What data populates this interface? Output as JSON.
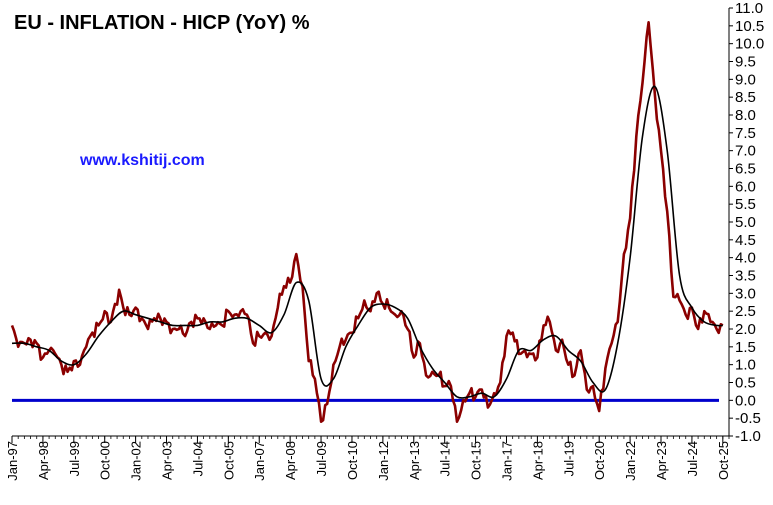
{
  "chart_data": {
    "type": "line",
    "title": "EU - INFLATION - HICP (YoY) %",
    "watermark": "www.kshitij.com",
    "xlabel": "",
    "ylabel": "",
    "ylim": [
      -1.0,
      11.0
    ],
    "y_ticks": [
      "11.0",
      "10.5",
      "10.0",
      "9.5",
      "9.0",
      "8.5",
      "8.0",
      "7.5",
      "7.0",
      "6.5",
      "6.0",
      "5.5",
      "5.0",
      "4.5",
      "4.0",
      "3.5",
      "3.0",
      "2.5",
      "2.0",
      "1.5",
      "1.0",
      "0.5",
      "0.0",
      "-0.5",
      "-1.0"
    ],
    "x_ticks": [
      "Jan-97",
      "Apr-98",
      "Jul-99",
      "Oct-00",
      "Jan-02",
      "Apr-03",
      "Jul-04",
      "Oct-05",
      "Jan-07",
      "Apr-08",
      "Jul-09",
      "Oct-10",
      "Jan-12",
      "Apr-13",
      "Jul-14",
      "Oct-15",
      "Jan-17",
      "Apr-18",
      "Jul-19",
      "Oct-20",
      "Jan-22",
      "Apr-23",
      "Jul-24",
      "Oct-25"
    ],
    "grid": false,
    "y_axis_side": "right",
    "colors": {
      "hicp": "#8b0000",
      "smoothed": "#000000",
      "zero_line": "#0000cc"
    },
    "series": [
      {
        "name": "",
        "style": "dark red",
        "points": [
          [
            "1997-01",
            2.1
          ],
          [
            "1997-04",
            1.5
          ],
          [
            "1997-07",
            1.6
          ],
          [
            "1997-10",
            1.7
          ],
          [
            "1998-01",
            1.6
          ],
          [
            "1998-04",
            1.2
          ],
          [
            "1998-07",
            1.4
          ],
          [
            "1998-10",
            1.3
          ],
          [
            "1999-01",
            1.0
          ],
          [
            "1999-04",
            0.8
          ],
          [
            "1999-07",
            1.1
          ],
          [
            "1999-10",
            1.0
          ],
          [
            "2000-01",
            1.5
          ],
          [
            "2000-04",
            1.9
          ],
          [
            "2000-07",
            2.1
          ],
          [
            "2000-10",
            2.5
          ],
          [
            "2001-01",
            2.2
          ],
          [
            "2001-05",
            3.1
          ],
          [
            "2001-07",
            2.6
          ],
          [
            "2001-10",
            2.4
          ],
          [
            "2002-01",
            2.6
          ],
          [
            "2002-04",
            2.3
          ],
          [
            "2002-07",
            2.0
          ],
          [
            "2002-10",
            2.3
          ],
          [
            "2003-01",
            2.3
          ],
          [
            "2003-04",
            2.2
          ],
          [
            "2003-07",
            2.0
          ],
          [
            "2003-10",
            2.0
          ],
          [
            "2004-01",
            1.8
          ],
          [
            "2004-04",
            2.2
          ],
          [
            "2004-07",
            2.3
          ],
          [
            "2004-10",
            2.3
          ],
          [
            "2005-01",
            2.0
          ],
          [
            "2005-04",
            2.1
          ],
          [
            "2005-07",
            2.1
          ],
          [
            "2005-10",
            2.5
          ],
          [
            "2006-01",
            2.4
          ],
          [
            "2006-04",
            2.5
          ],
          [
            "2006-07",
            2.4
          ],
          [
            "2006-10",
            1.6
          ],
          [
            "2007-01",
            1.8
          ],
          [
            "2007-04",
            1.9
          ],
          [
            "2007-07",
            1.8
          ],
          [
            "2007-10",
            2.6
          ],
          [
            "2008-01",
            3.2
          ],
          [
            "2008-04",
            3.3
          ],
          [
            "2008-07",
            4.1
          ],
          [
            "2008-10",
            3.2
          ],
          [
            "2009-01",
            1.1
          ],
          [
            "2009-04",
            0.6
          ],
          [
            "2009-07",
            -0.6
          ],
          [
            "2009-10",
            -0.1
          ],
          [
            "2010-01",
            1.0
          ],
          [
            "2010-04",
            1.5
          ],
          [
            "2010-07",
            1.7
          ],
          [
            "2010-10",
            1.9
          ],
          [
            "2011-01",
            2.3
          ],
          [
            "2011-04",
            2.8
          ],
          [
            "2011-07",
            2.5
          ],
          [
            "2011-10",
            3.0
          ],
          [
            "2012-01",
            2.7
          ],
          [
            "2012-04",
            2.6
          ],
          [
            "2012-07",
            2.4
          ],
          [
            "2012-10",
            2.5
          ],
          [
            "2013-01",
            2.0
          ],
          [
            "2013-04",
            1.2
          ],
          [
            "2013-07",
            1.6
          ],
          [
            "2013-10",
            0.7
          ],
          [
            "2014-01",
            0.8
          ],
          [
            "2014-04",
            0.7
          ],
          [
            "2014-07",
            0.4
          ],
          [
            "2014-10",
            0.4
          ],
          [
            "2015-01",
            -0.6
          ],
          [
            "2015-04",
            0.0
          ],
          [
            "2015-07",
            0.2
          ],
          [
            "2015-10",
            0.1
          ],
          [
            "2016-01",
            0.3
          ],
          [
            "2016-04",
            -0.2
          ],
          [
            "2016-07",
            0.2
          ],
          [
            "2016-10",
            0.5
          ],
          [
            "2017-01",
            1.8
          ],
          [
            "2017-04",
            1.9
          ],
          [
            "2017-07",
            1.3
          ],
          [
            "2017-10",
            1.4
          ],
          [
            "2018-01",
            1.3
          ],
          [
            "2018-04",
            1.2
          ],
          [
            "2018-07",
            2.1
          ],
          [
            "2018-10",
            2.2
          ],
          [
            "2019-01",
            1.4
          ],
          [
            "2019-04",
            1.7
          ],
          [
            "2019-07",
            1.0
          ],
          [
            "2019-10",
            0.7
          ],
          [
            "2020-01",
            1.4
          ],
          [
            "2020-04",
            0.3
          ],
          [
            "2020-07",
            0.4
          ],
          [
            "2020-10",
            -0.3
          ],
          [
            "2021-01",
            0.9
          ],
          [
            "2021-04",
            1.6
          ],
          [
            "2021-07",
            2.2
          ],
          [
            "2021-10",
            4.1
          ],
          [
            "2022-01",
            5.1
          ],
          [
            "2022-04",
            7.4
          ],
          [
            "2022-07",
            8.9
          ],
          [
            "2022-10",
            10.6
          ],
          [
            "2023-01",
            8.6
          ],
          [
            "2023-04",
            7.0
          ],
          [
            "2023-07",
            5.3
          ],
          [
            "2023-10",
            2.9
          ],
          [
            "2024-01",
            2.8
          ],
          [
            "2024-04",
            2.4
          ],
          [
            "2024-07",
            2.6
          ],
          [
            "2024-10",
            2.0
          ],
          [
            "2025-01",
            2.5
          ],
          [
            "2025-04",
            2.2
          ],
          [
            "2025-07",
            2.0
          ],
          [
            "2025-10",
            2.1
          ]
        ]
      },
      {
        "name": "",
        "style": "black smoothed",
        "points": [
          [
            "1997-01",
            1.6
          ],
          [
            "1997-07",
            1.6
          ],
          [
            "1998-01",
            1.5
          ],
          [
            "1998-07",
            1.4
          ],
          [
            "1999-01",
            1.1
          ],
          [
            "1999-07",
            1.0
          ],
          [
            "2000-01",
            1.3
          ],
          [
            "2000-07",
            1.8
          ],
          [
            "2001-01",
            2.2
          ],
          [
            "2001-07",
            2.5
          ],
          [
            "2002-01",
            2.4
          ],
          [
            "2002-07",
            2.3
          ],
          [
            "2003-01",
            2.2
          ],
          [
            "2003-07",
            2.1
          ],
          [
            "2004-01",
            2.1
          ],
          [
            "2004-07",
            2.1
          ],
          [
            "2005-01",
            2.2
          ],
          [
            "2005-07",
            2.2
          ],
          [
            "2006-01",
            2.3
          ],
          [
            "2006-07",
            2.3
          ],
          [
            "2007-01",
            2.1
          ],
          [
            "2007-07",
            1.9
          ],
          [
            "2008-01",
            2.4
          ],
          [
            "2008-07",
            3.3
          ],
          [
            "2009-01",
            2.8
          ],
          [
            "2009-07",
            0.6
          ],
          [
            "2010-01",
            0.6
          ],
          [
            "2010-07",
            1.5
          ],
          [
            "2011-01",
            2.1
          ],
          [
            "2011-07",
            2.6
          ],
          [
            "2012-01",
            2.7
          ],
          [
            "2012-07",
            2.6
          ],
          [
            "2013-01",
            2.3
          ],
          [
            "2013-07",
            1.5
          ],
          [
            "2014-01",
            0.9
          ],
          [
            "2014-07",
            0.5
          ],
          [
            "2015-01",
            0.1
          ],
          [
            "2015-07",
            0.1
          ],
          [
            "2016-01",
            0.2
          ],
          [
            "2016-07",
            0.1
          ],
          [
            "2017-01",
            0.6
          ],
          [
            "2017-07",
            1.4
          ],
          [
            "2018-01",
            1.4
          ],
          [
            "2018-07",
            1.7
          ],
          [
            "2019-01",
            1.8
          ],
          [
            "2019-07",
            1.4
          ],
          [
            "2020-01",
            1.1
          ],
          [
            "2020-07",
            0.5
          ],
          [
            "2021-01",
            0.3
          ],
          [
            "2021-07",
            1.6
          ],
          [
            "2022-01",
            4.0
          ],
          [
            "2022-07",
            7.4
          ],
          [
            "2023-01",
            8.8
          ],
          [
            "2023-07",
            7.0
          ],
          [
            "2024-01",
            3.5
          ],
          [
            "2024-07",
            2.6
          ],
          [
            "2025-01",
            2.2
          ],
          [
            "2025-07",
            2.1
          ],
          [
            "2025-10",
            2.1
          ]
        ]
      }
    ]
  }
}
